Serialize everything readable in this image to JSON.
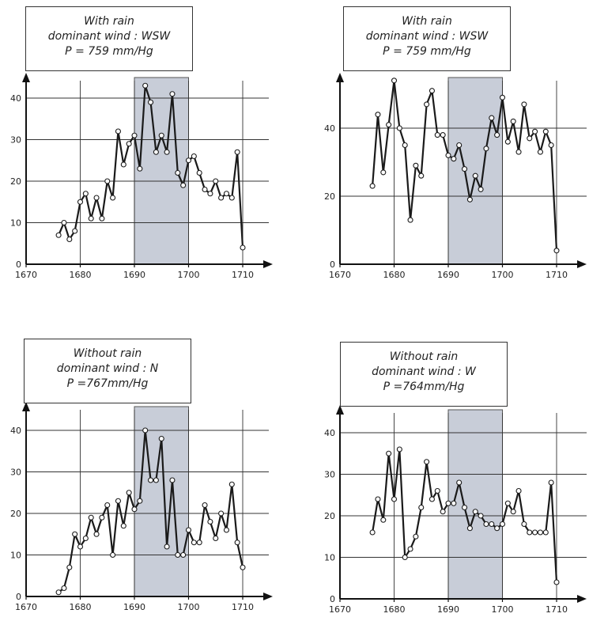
{
  "chart_data": [
    {
      "type": "line",
      "title_lines": [
        "With rain",
        "dominant wind : WSW",
        "P = 759 mm/Hg"
      ],
      "x_ticks": [
        1670,
        1680,
        1690,
        1700,
        1710
      ],
      "y_ticks": [
        0,
        10,
        20,
        30,
        40
      ],
      "xlim": [
        1670,
        1715
      ],
      "ylim": [
        0,
        45
      ],
      "shaded_range": [
        1690,
        1700
      ],
      "grid": true,
      "x": [
        1676,
        1677,
        1678,
        1679,
        1680,
        1681,
        1682,
        1683,
        1684,
        1685,
        1686,
        1687,
        1688,
        1689,
        1690,
        1691,
        1692,
        1693,
        1694,
        1695,
        1696,
        1697,
        1698,
        1699,
        1700,
        1701,
        1702,
        1703,
        1704,
        1705,
        1706,
        1707,
        1708,
        1709,
        1710
      ],
      "y": [
        7,
        10,
        6,
        8,
        15,
        17,
        11,
        16,
        11,
        20,
        16,
        32,
        24,
        29,
        31,
        23,
        43,
        39,
        27,
        31,
        27,
        41,
        22,
        19,
        25,
        26,
        22,
        18,
        17,
        20,
        16,
        17,
        16,
        27,
        4
      ]
    },
    {
      "type": "line",
      "title_lines": [
        "With rain",
        "dominant wind : WSW",
        "P = 759 mm/Hg"
      ],
      "x_ticks": [
        1670,
        1680,
        1690,
        1700,
        1710
      ],
      "y_ticks": [
        0,
        20,
        40
      ],
      "xlim": [
        1670,
        1715
      ],
      "ylim": [
        0,
        55
      ],
      "shaded_range": [
        1690,
        1700
      ],
      "grid": true,
      "x": [
        1676,
        1677,
        1678,
        1679,
        1680,
        1681,
        1682,
        1683,
        1684,
        1685,
        1686,
        1687,
        1688,
        1689,
        1690,
        1691,
        1692,
        1693,
        1694,
        1695,
        1696,
        1697,
        1698,
        1699,
        1700,
        1701,
        1702,
        1703,
        1704,
        1705,
        1706,
        1707,
        1708,
        1709,
        1710
      ],
      "y": [
        23,
        44,
        27,
        41,
        54,
        40,
        35,
        13,
        29,
        26,
        47,
        51,
        38,
        38,
        32,
        31,
        35,
        28,
        19,
        26,
        22,
        34,
        43,
        38,
        49,
        36,
        42,
        33,
        47,
        37,
        39,
        33,
        39,
        35,
        4
      ]
    },
    {
      "type": "line",
      "title_lines": [
        "Without rain",
        "dominant wind : N",
        "P =767mm/Hg"
      ],
      "x_ticks": [
        1670,
        1680,
        1690,
        1700,
        1710
      ],
      "y_ticks": [
        0,
        10,
        20,
        30,
        40
      ],
      "xlim": [
        1670,
        1715
      ],
      "ylim": [
        0,
        45
      ],
      "shaded_range": [
        1690,
        1700
      ],
      "grid": true,
      "x": [
        1676,
        1677,
        1678,
        1679,
        1680,
        1681,
        1682,
        1683,
        1684,
        1685,
        1686,
        1687,
        1688,
        1689,
        1690,
        1691,
        1692,
        1693,
        1694,
        1695,
        1696,
        1697,
        1698,
        1699,
        1700,
        1701,
        1702,
        1703,
        1704,
        1705,
        1706,
        1707,
        1708,
        1709,
        1710
      ],
      "y": [
        1,
        2,
        7,
        15,
        12,
        14,
        19,
        15,
        19,
        22,
        10,
        23,
        17,
        25,
        21,
        23,
        40,
        28,
        28,
        38,
        12,
        28,
        10,
        10,
        16,
        13,
        13,
        22,
        18,
        14,
        20,
        16,
        27,
        13,
        7
      ]
    },
    {
      "type": "line",
      "title_lines": [
        "Without rain",
        "dominant wind : W",
        "P =764mm/Hg"
      ],
      "x_ticks": [
        1670,
        1680,
        1690,
        1700,
        1710
      ],
      "y_ticks": [
        0,
        10,
        20,
        30,
        40
      ],
      "xlim": [
        1670,
        1715
      ],
      "ylim": [
        0,
        45
      ],
      "shaded_range": [
        1690,
        1700
      ],
      "grid": true,
      "x": [
        1676,
        1677,
        1678,
        1679,
        1680,
        1681,
        1682,
        1683,
        1684,
        1685,
        1686,
        1687,
        1688,
        1689,
        1690,
        1691,
        1692,
        1693,
        1694,
        1695,
        1696,
        1697,
        1698,
        1699,
        1700,
        1701,
        1702,
        1703,
        1704,
        1705,
        1706,
        1707,
        1708,
        1709,
        1710
      ],
      "y": [
        16,
        24,
        19,
        35,
        24,
        36,
        10,
        12,
        15,
        22,
        33,
        24,
        26,
        21,
        23,
        23,
        28,
        22,
        17,
        21,
        20,
        18,
        18,
        17,
        18,
        23,
        21,
        26,
        18,
        16,
        16,
        16,
        16,
        28,
        4
      ]
    }
  ]
}
